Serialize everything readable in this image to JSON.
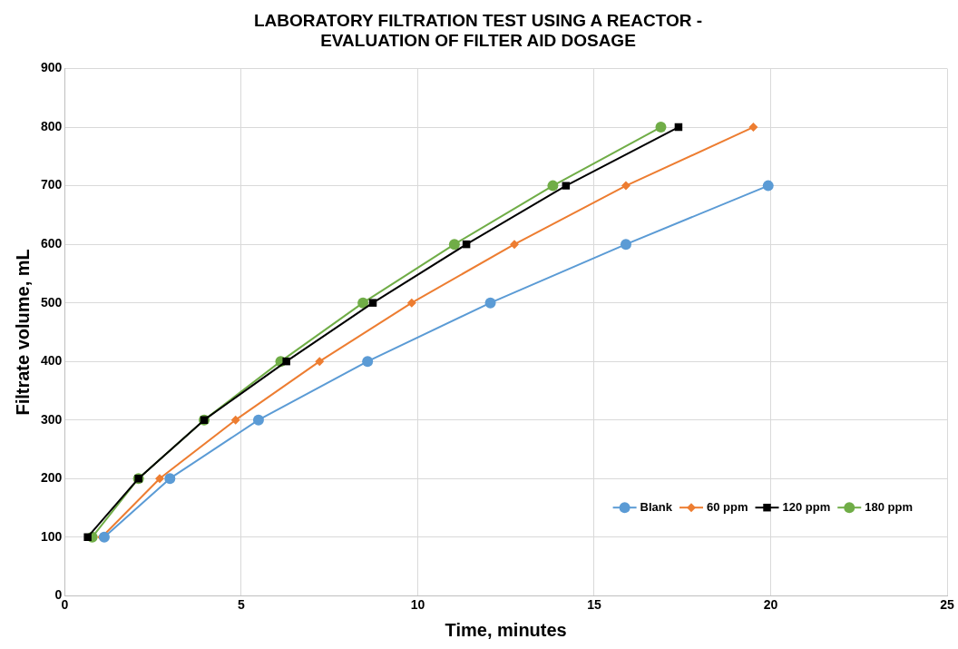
{
  "chart_data": {
    "type": "line",
    "title": "LABORATORY FILTRATION TEST USING A REACTOR -\nEVALUATION OF FILTER AID DOSAGE",
    "xlabel": "Time, minutes",
    "ylabel": "Filtrate volume, mL",
    "xlim": [
      0,
      25
    ],
    "xticks": [
      0,
      5,
      10,
      15,
      20,
      25
    ],
    "ylim": [
      0,
      900
    ],
    "yticks": [
      0,
      100,
      200,
      300,
      400,
      500,
      600,
      700,
      800,
      900
    ],
    "grid": true,
    "legend": "bottom right",
    "series": [
      {
        "name": "Blank",
        "color": "#5b9bd5",
        "marker": "circle",
        "x": [
          1.12,
          2.98,
          5.49,
          8.58,
          12.06,
          15.9,
          19.93
        ],
        "values": [
          100,
          200,
          300,
          400,
          500,
          600,
          700
        ]
      },
      {
        "name": "60 ppm",
        "color": "#ed7d31",
        "marker": "diamond",
        "x": [
          1.05,
          2.69,
          4.84,
          7.22,
          9.83,
          12.74,
          15.9,
          19.51
        ],
        "values": [
          100,
          200,
          300,
          400,
          500,
          600,
          700,
          800
        ]
      },
      {
        "name": "120 ppm",
        "color": "#000000",
        "marker": "square",
        "x": [
          0.65,
          2.09,
          3.95,
          6.28,
          8.73,
          11.38,
          14.2,
          17.39
        ],
        "values": [
          100,
          200,
          300,
          400,
          500,
          600,
          700,
          800
        ]
      },
      {
        "name": "180 ppm",
        "color": "#70ad47",
        "marker": "circle",
        "x": [
          0.78,
          2.09,
          3.95,
          6.12,
          8.45,
          11.04,
          13.83,
          16.89
        ],
        "values": [
          100,
          200,
          300,
          400,
          500,
          600,
          700,
          800
        ]
      }
    ]
  }
}
